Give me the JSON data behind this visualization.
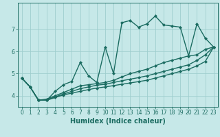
{
  "xlabel": "Humidex (Indice chaleur)",
  "ylabel": "",
  "xlim": [
    -0.5,
    23.5
  ],
  "ylim": [
    3.5,
    8.2
  ],
  "yticks": [
    4,
    5,
    6,
    7
  ],
  "xticks": [
    0,
    1,
    2,
    3,
    4,
    5,
    6,
    7,
    8,
    9,
    10,
    11,
    12,
    13,
    14,
    15,
    16,
    17,
    18,
    19,
    20,
    21,
    22,
    23
  ],
  "background_color": "#c6e8e8",
  "grid_color": "#9fcece",
  "line_color": "#1a6b60",
  "lines": [
    {
      "x": [
        0,
        1,
        2,
        3,
        4,
        5,
        6,
        7,
        8,
        9,
        10,
        11,
        12,
        13,
        14,
        15,
        16,
        17,
        18,
        19,
        20,
        21,
        22,
        23
      ],
      "y": [
        4.8,
        4.4,
        3.8,
        3.8,
        4.2,
        4.5,
        4.65,
        5.5,
        4.9,
        4.6,
        6.2,
        5.0,
        7.3,
        7.4,
        7.1,
        7.25,
        7.6,
        7.2,
        7.15,
        7.1,
        5.8,
        7.25,
        6.6,
        6.2
      ]
    },
    {
      "x": [
        0,
        1,
        2,
        3,
        4,
        5,
        6,
        7,
        8,
        9,
        10,
        11,
        12,
        13,
        14,
        15,
        16,
        17,
        18,
        19,
        20,
        21,
        22,
        23
      ],
      "y": [
        4.8,
        4.4,
        3.8,
        3.85,
        4.0,
        4.15,
        4.3,
        4.45,
        4.5,
        4.55,
        4.6,
        4.7,
        4.85,
        5.0,
        5.1,
        5.2,
        5.35,
        5.5,
        5.6,
        5.7,
        5.8,
        5.85,
        6.1,
        6.2
      ]
    },
    {
      "x": [
        0,
        1,
        2,
        3,
        4,
        5,
        6,
        7,
        8,
        9,
        10,
        11,
        12,
        13,
        14,
        15,
        16,
        17,
        18,
        19,
        20,
        21,
        22,
        23
      ],
      "y": [
        4.8,
        4.4,
        3.8,
        3.82,
        3.95,
        4.08,
        4.2,
        4.32,
        4.4,
        4.48,
        4.52,
        4.6,
        4.68,
        4.75,
        4.82,
        4.9,
        5.0,
        5.1,
        5.2,
        5.3,
        5.4,
        5.6,
        5.85,
        6.2
      ]
    },
    {
      "x": [
        0,
        1,
        2,
        3,
        4,
        5,
        6,
        7,
        8,
        9,
        10,
        11,
        12,
        13,
        14,
        15,
        16,
        17,
        18,
        19,
        20,
        21,
        22,
        23
      ],
      "y": [
        4.8,
        4.4,
        3.8,
        3.8,
        3.92,
        4.04,
        4.12,
        4.2,
        4.28,
        4.35,
        4.4,
        4.46,
        4.52,
        4.58,
        4.64,
        4.7,
        4.8,
        4.9,
        5.0,
        5.1,
        5.2,
        5.35,
        5.55,
        6.2
      ]
    }
  ],
  "marker": "D",
  "marker_size": 2.2,
  "line_width": 1.0,
  "xlabel_fontsize": 7,
  "tick_fontsize": 5.5,
  "xlabel_color": "#1a6b60"
}
